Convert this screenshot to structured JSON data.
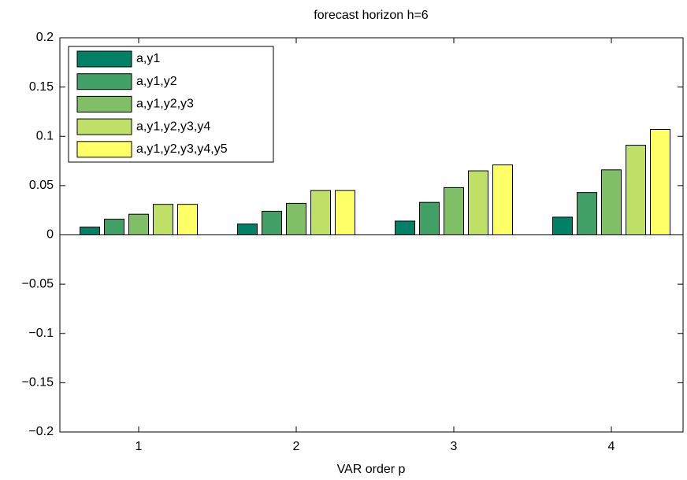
{
  "chart_data": {
    "type": "bar",
    "title": "forecast horizon h=6",
    "x_label": "VAR order p",
    "categories": [
      "1",
      "2",
      "3",
      "4"
    ],
    "series": [
      {
        "name": "a,y1",
        "color": "#008066",
        "values": [
          0.008,
          0.011,
          0.014,
          0.018
        ]
      },
      {
        "name": "a,y1,y2",
        "color": "#40a066",
        "values": [
          0.016,
          0.024,
          0.033,
          0.043
        ]
      },
      {
        "name": "a,y1,y2,y3",
        "color": "#80bf66",
        "values": [
          0.021,
          0.032,
          0.048,
          0.066
        ]
      },
      {
        "name": "a,y1,y2,y3,y4",
        "color": "#bfdf66",
        "values": [
          0.031,
          0.045,
          0.065,
          0.091
        ]
      },
      {
        "name": "a,y1,y2,y3,y4,y5",
        "color": "#ffff66",
        "values": [
          0.031,
          0.045,
          0.071,
          0.107
        ]
      }
    ],
    "ylim": [
      -0.2,
      0.2
    ],
    "yticks": [
      {
        "value": -0.2,
        "label": "−0.2"
      },
      {
        "value": -0.15,
        "label": "−0.15"
      },
      {
        "value": -0.1,
        "label": "−0.1"
      },
      {
        "value": -0.05,
        "label": "−0.05"
      },
      0,
      0.05,
      0.1,
      0.15,
      0.2
    ],
    "legend": "upper left"
  }
}
